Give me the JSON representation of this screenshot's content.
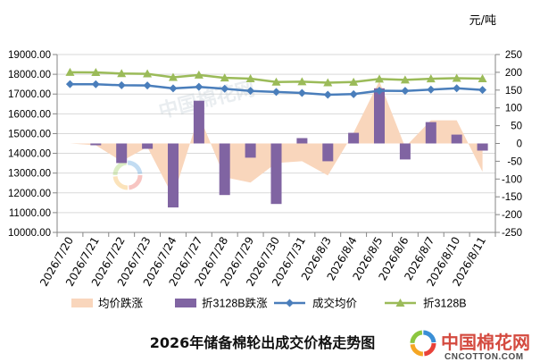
{
  "colors": {
    "grid": "#d9d9d9",
    "axis": "#868686",
    "logo_text": "#d44a3f",
    "logo_domain": "#4d4d4d",
    "logo_ring": [
      "#e8423a",
      "#f5a623",
      "#8cc63f",
      "#3a8fd6"
    ]
  },
  "logo": {
    "name": "中国棉花网",
    "domain": "CNCOTTON.COM",
    "icon": "cncotton-logo-icon"
  },
  "chart_data": {
    "type": "line",
    "title": "2026年储备棉轮出成交价格走势图",
    "unit": "元/吨",
    "categories": [
      "2026/7/20",
      "2026/7/21",
      "2026/7/22",
      "2026/7/23",
      "2026/7/24",
      "2026/7/27",
      "2026/7/28",
      "2026/7/29",
      "2026/7/30",
      "2026/7/31",
      "2026/8/3",
      "2026/8/4",
      "2026/8/5",
      "2026/8/6",
      "2026/8/7",
      "2026/8/10",
      "2026/8/11"
    ],
    "y_left": {
      "range": [
        10000,
        19000
      ],
      "ticks": [
        "19000.00",
        "18000.00",
        "17000.00",
        "16000.00",
        "15000.00",
        "14000.00",
        "13000.00",
        "12000.00",
        "11000.00",
        "10000.00"
      ]
    },
    "y_right": {
      "range": [
        -250,
        250
      ],
      "ticks": [
        "250",
        "200",
        "150",
        "100",
        "50",
        "0",
        "-50",
        "-100",
        "-150",
        "-200",
        "-250"
      ]
    },
    "series": [
      {
        "name": "均价跌涨",
        "type": "area",
        "axis": "right",
        "color": "#f9d6bc",
        "values": [
          0,
          -5,
          -50,
          -10,
          -150,
          80,
          -95,
          -110,
          -55,
          -50,
          -90,
          30,
          175,
          -10,
          65,
          65,
          -80
        ]
      },
      {
        "name": "折3128B跌涨",
        "type": "bar",
        "axis": "right",
        "color": "#8064a2",
        "values": [
          0,
          -5,
          -55,
          -15,
          -180,
          120,
          -145,
          -40,
          -170,
          15,
          -50,
          30,
          155,
          -45,
          60,
          25,
          -20
        ]
      },
      {
        "name": "成交均价",
        "type": "line",
        "axis": "left",
        "marker": "diamond",
        "color": "#4a7ebb",
        "values": [
          17500,
          17495,
          17445,
          17435,
          17285,
          17365,
          17270,
          17160,
          17105,
          17055,
          16965,
          16995,
          17170,
          17160,
          17225,
          17290,
          17210
        ]
      },
      {
        "name": "折3128B",
        "type": "line",
        "axis": "left",
        "marker": "triangle",
        "color": "#9bbb59",
        "values": [
          18100,
          18095,
          18040,
          18025,
          17845,
          17965,
          17820,
          17780,
          17610,
          17625,
          17575,
          17605,
          17760,
          17715,
          17775,
          17800,
          17780
        ]
      }
    ],
    "legend": "bottom",
    "grid": true
  }
}
